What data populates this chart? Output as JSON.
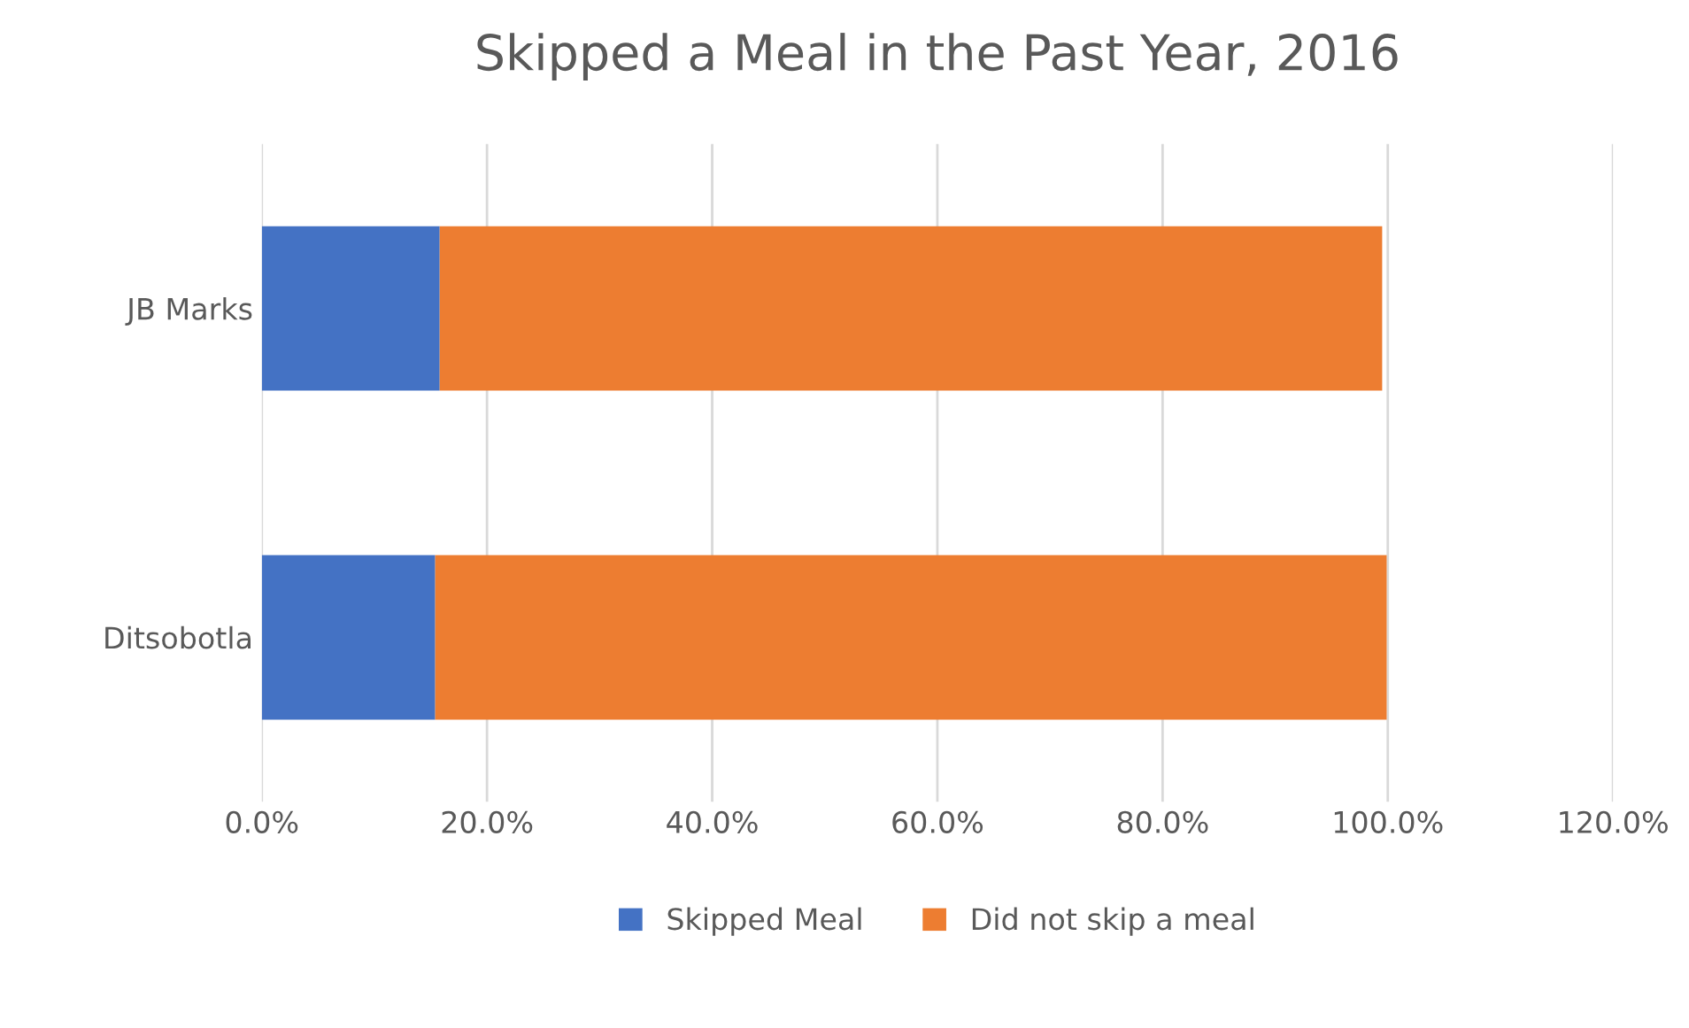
{
  "chart_data": {
    "type": "bar",
    "orientation": "horizontal",
    "stacked": true,
    "title": "Skipped a Meal in the Past Year, 2016",
    "categories": [
      "JB Marks",
      "Ditsobotla"
    ],
    "series": [
      {
        "name": "Skipped Meal",
        "color": "#4472c4",
        "values": [
          15.8,
          15.4
        ]
      },
      {
        "name": "Did not skip a meal",
        "color": "#ed7d31",
        "values": [
          83.7,
          84.5
        ]
      }
    ],
    "xlim": [
      0,
      120
    ],
    "xticks": [
      {
        "value": 0,
        "label": "0.0%"
      },
      {
        "value": 20,
        "label": "20.0%"
      },
      {
        "value": 40,
        "label": "40.0%"
      },
      {
        "value": 60,
        "label": "60.0%"
      },
      {
        "value": 80,
        "label": "80.0%"
      },
      {
        "value": 100,
        "label": "100.0%"
      },
      {
        "value": 120,
        "label": "120.0%"
      }
    ],
    "grid": "x",
    "legend": "bottom"
  }
}
